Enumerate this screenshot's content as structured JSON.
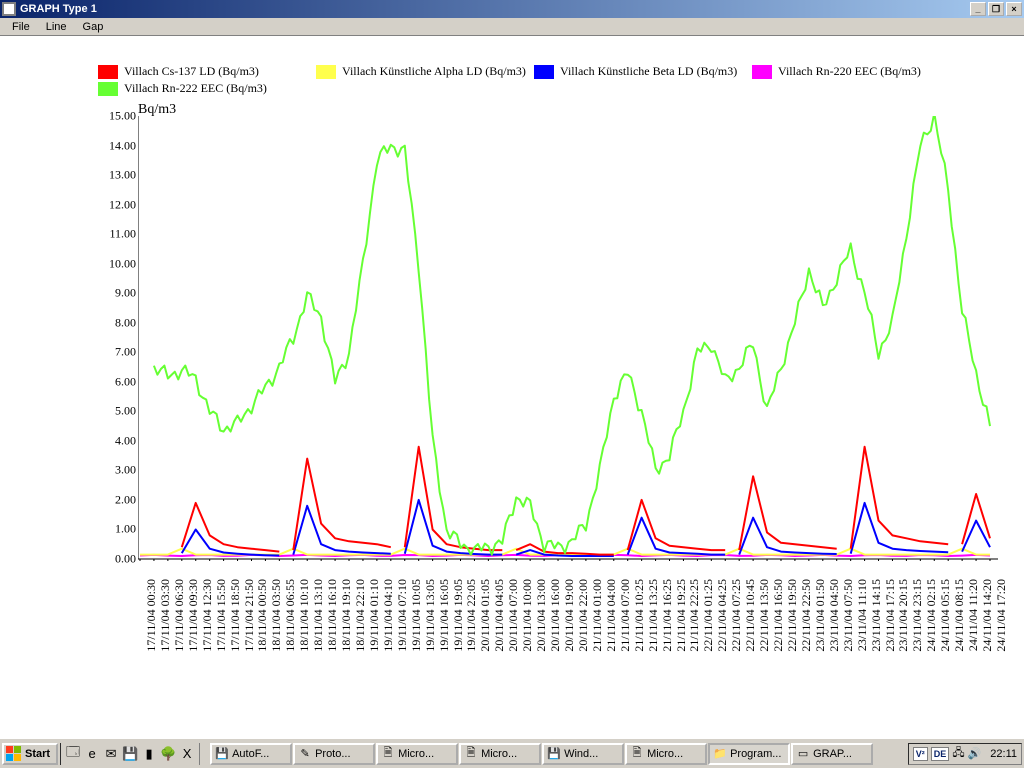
{
  "window": {
    "title": "GRAPH Type 1",
    "menus": [
      "File",
      "Line",
      "Gap"
    ]
  },
  "legend": [
    {
      "label": "Villach Cs-137 LD (Bq/m3)",
      "color": "#ff0000"
    },
    {
      "label": "Villach Künstliche Alpha LD (Bq/m3)",
      "color": "#ffff4d"
    },
    {
      "label": "Villach Künstliche Beta LD (Bq/m3)",
      "color": "#0000ff"
    },
    {
      "label": "Villach Rn-220 EEC (Bq/m3)",
      "color": "#ff00ff"
    },
    {
      "label": "Villach Rn-222 EEC (Bq/m3)",
      "color": "#66ff33"
    }
  ],
  "chart": {
    "y_title": "Bq/m3",
    "title_fontsize": 14,
    "background_color": "#ffffff",
    "axis_color": "#000000",
    "xlim": [
      0,
      62
    ],
    "ylim": [
      0,
      15
    ],
    "y_ticks": [
      0.0,
      1.0,
      2.0,
      3.0,
      4.0,
      5.0,
      6.0,
      7.0,
      8.0,
      9.0,
      10.0,
      11.0,
      12.0,
      13.0,
      14.0,
      15.0
    ],
    "x_labels": [
      "17/11/04 00:30",
      "17/11/04 03:30",
      "17/11/04 06:30",
      "17/11/04 09:30",
      "17/11/04 12:30",
      "17/11/04 15:50",
      "17/11/04 18:50",
      "17/11/04 21:50",
      "18/11/04 00:50",
      "18/11/04 03:50",
      "18/11/04 06:55",
      "18/11/04 10:10",
      "18/11/04 13:10",
      "18/11/04 16:10",
      "18/11/04 19:10",
      "18/11/04 22:10",
      "19/11/04 01:10",
      "19/11/04 04:10",
      "19/11/04 07:10",
      "19/11/04 10:05",
      "19/11/04 13:05",
      "19/11/04 16:05",
      "19/11/04 19:05",
      "19/11/04 22:05",
      "20/11/04 01:05",
      "20/11/04 04:05",
      "20/11/04 07:00",
      "20/11/04 10:00",
      "20/11/04 13:00",
      "20/11/04 16:00",
      "20/11/04 19:00",
      "20/11/04 22:00",
      "21/11/04 01:00",
      "21/11/04 04:00",
      "21/11/04 07:00",
      "21/11/04 10:25",
      "21/11/04 13:25",
      "21/11/04 16:25",
      "21/11/04 19:25",
      "21/11/04 22:25",
      "22/11/04 01:25",
      "22/11/04 04:25",
      "22/11/04 07:25",
      "22/11/04 10:45",
      "22/11/04 13:50",
      "22/11/04 16:50",
      "22/11/04 19:50",
      "22/11/04 22:50",
      "23/11/04 01:50",
      "23/11/04 04:50",
      "23/11/04 07:50",
      "23/11/04 11:10",
      "23/11/04 14:15",
      "23/11/04 17:15",
      "23/11/04 20:15",
      "23/11/04 23:15",
      "24/11/04 02:15",
      "24/11/04 05:15",
      "24/11/04 08:15",
      "24/11/04 11:20",
      "24/11/04 14:20",
      "24/11/04 17:20"
    ],
    "series": {
      "rn222": {
        "color": "#66ff33",
        "line_width": 2,
        "y": [
          null,
          6.5,
          6.2,
          6.4,
          6.1,
          5.0,
          4.4,
          4.6,
          5.2,
          5.8,
          6.5,
          7.5,
          8.9,
          8.2,
          6.0,
          7.0,
          10.0,
          13.5,
          14.0,
          13.8,
          10.0,
          4.0,
          1.0,
          0.5,
          0.3,
          0.4,
          0.6,
          2.1,
          1.8,
          0.5,
          0.4,
          0.6,
          1.2,
          3.0,
          5.5,
          6.3,
          5.0,
          3.0,
          3.5,
          5.0,
          7.0,
          7.3,
          6.0,
          6.5,
          7.3,
          5.0,
          6.5,
          8.0,
          9.8,
          8.5,
          9.5,
          10.5,
          9.0,
          7.0,
          8.0,
          11.0,
          14.0,
          15.0,
          12.5,
          8.4,
          6.3,
          4.5
        ]
      },
      "cs137": {
        "color": "#ff0000",
        "line_width": 2,
        "segments": [
          {
            "x0": 3,
            "y": [
              0.4,
              1.9,
              0.8,
              0.5,
              0.4,
              0.35,
              0.3,
              0.25
            ]
          },
          {
            "x0": 11,
            "y": [
              0.3,
              3.4,
              1.2,
              0.7,
              0.6,
              0.55,
              0.5,
              0.4
            ]
          },
          {
            "x0": 19,
            "y": [
              0.4,
              3.8,
              1.0,
              0.5,
              0.4,
              0.35,
              0.3,
              0.3
            ]
          },
          {
            "x0": 27,
            "y": [
              0.3,
              0.5,
              0.25,
              0.2,
              0.2,
              0.18,
              0.15,
              0.15
            ]
          },
          {
            "x0": 35,
            "y": [
              0.3,
              2.0,
              0.7,
              0.45,
              0.4,
              0.35,
              0.3,
              0.3
            ]
          },
          {
            "x0": 43,
            "y": [
              0.3,
              2.8,
              0.9,
              0.55,
              0.5,
              0.45,
              0.4,
              0.35
            ]
          },
          {
            "x0": 51,
            "y": [
              0.35,
              3.8,
              1.3,
              0.8,
              0.7,
              0.6,
              0.55,
              0.5
            ]
          },
          {
            "x0": 59,
            "y": [
              0.5,
              2.2,
              0.7
            ]
          }
        ]
      },
      "beta": {
        "color": "#0000ff",
        "line_width": 2,
        "segments": [
          {
            "x0": 3,
            "y": [
              0.2,
              1.0,
              0.35,
              0.22,
              0.18,
              0.15,
              0.13,
              0.12
            ]
          },
          {
            "x0": 11,
            "y": [
              0.15,
              1.8,
              0.5,
              0.3,
              0.25,
              0.22,
              0.2,
              0.18
            ]
          },
          {
            "x0": 19,
            "y": [
              0.18,
              2.0,
              0.45,
              0.25,
              0.2,
              0.17,
              0.15,
              0.15
            ]
          },
          {
            "x0": 27,
            "y": [
              0.15,
              0.3,
              0.15,
              0.12,
              0.1,
              0.1,
              0.1,
              0.1
            ]
          },
          {
            "x0": 35,
            "y": [
              0.15,
              1.4,
              0.35,
              0.22,
              0.2,
              0.18,
              0.15,
              0.15
            ]
          },
          {
            "x0": 43,
            "y": [
              0.15,
              1.4,
              0.4,
              0.25,
              0.22,
              0.2,
              0.18,
              0.17
            ]
          },
          {
            "x0": 51,
            "y": [
              0.18,
              1.9,
              0.55,
              0.35,
              0.3,
              0.27,
              0.25,
              0.23
            ]
          },
          {
            "x0": 59,
            "y": [
              0.25,
              1.3,
              0.4
            ]
          }
        ]
      },
      "alpha": {
        "color": "#ffff4d",
        "line_width": 2,
        "y_level": 0.15,
        "bumps_at": [
          3,
          11,
          19,
          27,
          35,
          43,
          51,
          59
        ],
        "bump_height": 0.35
      },
      "rn220": {
        "color": "#ff00ff",
        "line_width": 2,
        "y_level": 0.12
      }
    }
  },
  "taskbar": {
    "start": "Start",
    "quicklaunch": [
      {
        "name": "show-desktop-icon",
        "glyph": "🗔"
      },
      {
        "name": "ie-icon",
        "glyph": "e"
      },
      {
        "name": "outlook-icon",
        "glyph": "✉"
      },
      {
        "name": "save-icon",
        "glyph": "💾"
      },
      {
        "name": "cmd-icon",
        "glyph": "▮"
      },
      {
        "name": "tree-icon",
        "glyph": "🌳"
      },
      {
        "name": "excel-icon",
        "glyph": "X"
      }
    ],
    "tasks": [
      {
        "label": "AutoF...",
        "active": false,
        "ico": "💾"
      },
      {
        "label": "Proto...",
        "active": false,
        "ico": "✎"
      },
      {
        "label": "Micro...",
        "active": false,
        "ico": "🗎"
      },
      {
        "label": "Micro...",
        "active": false,
        "ico": "🗎"
      },
      {
        "label": "Wind...",
        "active": false,
        "ico": "💾"
      },
      {
        "label": "Micro...",
        "active": false,
        "ico": "🗎"
      },
      {
        "label": "Program...",
        "active": true,
        "ico": "📁"
      },
      {
        "label": "GRAP...",
        "active": false,
        "ico": "▭"
      }
    ],
    "tray": {
      "badges": [
        "V²",
        "DE"
      ],
      "icons": [
        "🖧",
        "🔊"
      ],
      "clock": "22:11"
    }
  }
}
